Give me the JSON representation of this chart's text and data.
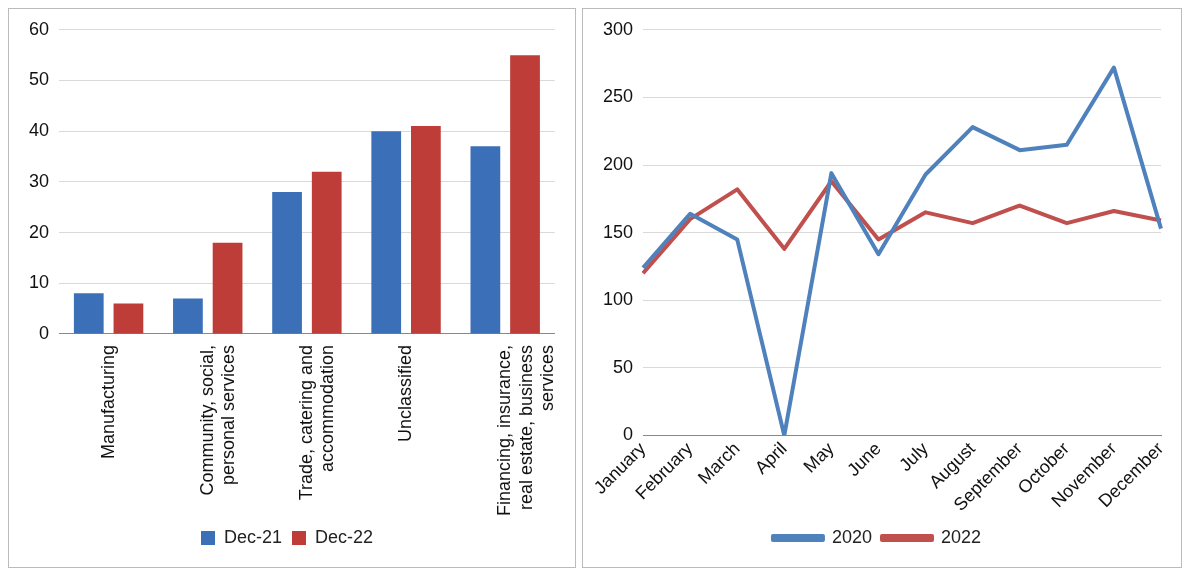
{
  "chart_data": [
    {
      "type": "bar",
      "categories": [
        "Manufacturing",
        "Community, social, personal services",
        "Trade, catering and accommodation",
        "Unclassified",
        "Financing, insurance, real estate, business services"
      ],
      "series": [
        {
          "name": "Dec-21",
          "color": "#3b70b8",
          "values": [
            8,
            7,
            28,
            40,
            37
          ]
        },
        {
          "name": "Dec-22",
          "color": "#be3d38",
          "values": [
            6,
            18,
            32,
            41,
            55
          ]
        }
      ],
      "ylim": [
        0,
        60
      ],
      "yticks": [
        0,
        10,
        20,
        30,
        40,
        50,
        60
      ],
      "grid": "y",
      "legend": "bottom"
    },
    {
      "type": "line",
      "categories": [
        "January",
        "February",
        "March",
        "April",
        "May",
        "June",
        "July",
        "August",
        "September",
        "October",
        "November",
        "December"
      ],
      "series": [
        {
          "name": "2020",
          "color": "#4f81bd",
          "values": [
            124,
            164,
            145,
            0,
            194,
            134,
            193,
            228,
            211,
            215,
            272,
            153
          ]
        },
        {
          "name": "2022",
          "color": "#c0504d",
          "values": [
            120,
            160,
            182,
            138,
            188,
            145,
            165,
            157,
            170,
            157,
            166,
            159
          ]
        }
      ],
      "ylim": [
        0,
        300
      ],
      "yticks": [
        0,
        50,
        100,
        150,
        200,
        250,
        300
      ],
      "grid": "y",
      "legend": "bottom",
      "marker": "none"
    }
  ]
}
